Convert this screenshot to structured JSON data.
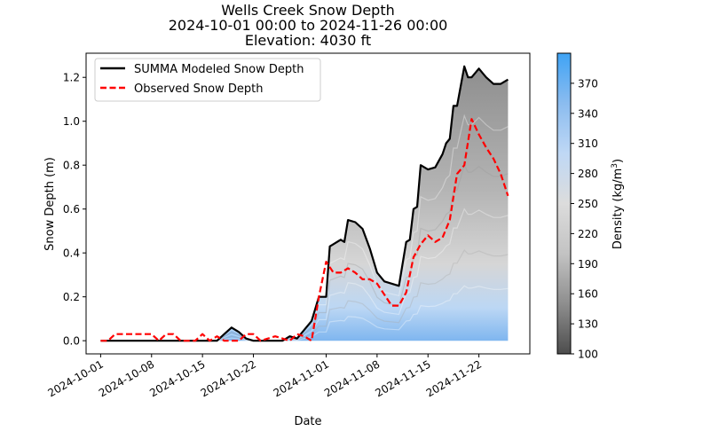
{
  "chart_data": {
    "type": "area",
    "title_lines": [
      "Wells Creek Snow Depth",
      "2024-10-01 00:00 to 2024-11-26 00:00",
      "Elevation: 4030 ft"
    ],
    "xlabel": "Date",
    "ylabel": "Snow Depth (m)",
    "xlim": [
      "2024-09-29",
      "2024-11-29"
    ],
    "ylim": [
      -0.06,
      1.31
    ],
    "x_ticks": [
      "2024-10-01",
      "2024-10-08",
      "2024-10-15",
      "2024-10-22",
      "2024-11-01",
      "2024-11-08",
      "2024-11-15",
      "2024-11-22"
    ],
    "y_ticks": [
      0.0,
      0.2,
      0.4,
      0.6,
      0.8,
      1.0,
      1.2
    ],
    "legend_position": "top-left",
    "colorbar": {
      "label": "Density (kg/m³)",
      "label_base": "Density (kg/m",
      "label_sup": "3",
      "label_end": ")",
      "min": 100,
      "max": 400,
      "ticks": [
        100,
        130,
        160,
        190,
        220,
        250,
        280,
        310,
        340,
        370
      ],
      "colors": [
        "#4d4d4d",
        "#8e8e8e",
        "#c3c3c3",
        "#dcdcdc",
        "#bfd8f5",
        "#8bbcef",
        "#3fa3f5"
      ]
    },
    "series": [
      {
        "name": "SUMMA Modeled Snow Depth",
        "color": "#000000",
        "style": "solid",
        "x": [
          "2024-10-01",
          "2024-10-17",
          "2024-10-18",
          "2024-10-19",
          "2024-10-20",
          "2024-10-21",
          "2024-10-22",
          "2024-10-26",
          "2024-10-27",
          "2024-10-28",
          "2024-10-29",
          "2024-10-30",
          "2024-10-31",
          "2024-11-01",
          "2024-11-01 12:00",
          "2024-11-02",
          "2024-11-03",
          "2024-11-03 12:00",
          "2024-11-04",
          "2024-11-05",
          "2024-11-06",
          "2024-11-07",
          "2024-11-08",
          "2024-11-09",
          "2024-11-10",
          "2024-11-11",
          "2024-11-12",
          "2024-11-12 12:00",
          "2024-11-13",
          "2024-11-13 12:00",
          "2024-11-14",
          "2024-11-15",
          "2024-11-16",
          "2024-11-17",
          "2024-11-17 12:00",
          "2024-11-18",
          "2024-11-18 12:00",
          "2024-11-19",
          "2024-11-20",
          "2024-11-20 12:00",
          "2024-11-21",
          "2024-11-22",
          "2024-11-22 12:00",
          "2024-11-23",
          "2024-11-24",
          "2024-11-25",
          "2024-11-26"
        ],
        "y": [
          0.0,
          0.0,
          0.03,
          0.06,
          0.04,
          0.01,
          0.0,
          0.0,
          0.02,
          0.01,
          0.05,
          0.09,
          0.2,
          0.2,
          0.43,
          0.44,
          0.46,
          0.45,
          0.55,
          0.54,
          0.51,
          0.42,
          0.31,
          0.27,
          0.26,
          0.25,
          0.45,
          0.46,
          0.6,
          0.61,
          0.8,
          0.78,
          0.79,
          0.85,
          0.9,
          0.92,
          1.07,
          1.07,
          1.25,
          1.2,
          1.2,
          1.24,
          1.22,
          1.2,
          1.17,
          1.17,
          1.19
        ]
      },
      {
        "name": "Observed Snow Depth",
        "color": "#ff0000",
        "style": "dashed",
        "x": [
          "2024-10-01",
          "2024-10-02",
          "2024-10-03",
          "2024-10-06",
          "2024-10-08",
          "2024-10-09",
          "2024-10-10",
          "2024-10-11",
          "2024-10-12",
          "2024-10-13",
          "2024-10-14",
          "2024-10-15",
          "2024-10-16",
          "2024-10-17",
          "2024-10-18",
          "2024-10-19",
          "2024-10-20",
          "2024-10-21",
          "2024-10-22",
          "2024-10-23",
          "2024-10-24",
          "2024-10-25",
          "2024-10-26",
          "2024-10-27",
          "2024-10-28",
          "2024-10-29",
          "2024-10-30",
          "2024-10-31",
          "2024-11-01",
          "2024-11-02",
          "2024-11-03",
          "2024-11-04",
          "2024-11-05",
          "2024-11-06",
          "2024-11-07",
          "2024-11-08",
          "2024-11-09",
          "2024-11-10",
          "2024-11-11",
          "2024-11-12",
          "2024-11-13",
          "2024-11-14",
          "2024-11-15",
          "2024-11-16",
          "2024-11-17",
          "2024-11-18",
          "2024-11-19",
          "2024-11-20",
          "2024-11-21",
          "2024-11-22",
          "2024-11-23",
          "2024-11-24",
          "2024-11-25",
          "2024-11-26"
        ],
        "y": [
          0.0,
          0.0,
          0.03,
          0.03,
          0.03,
          0.0,
          0.03,
          0.03,
          0.0,
          0.0,
          0.0,
          0.03,
          0.0,
          0.02,
          0.0,
          0.0,
          0.0,
          0.03,
          0.03,
          0.0,
          0.01,
          0.02,
          0.01,
          0.0,
          0.03,
          0.02,
          0.0,
          0.2,
          0.36,
          0.31,
          0.31,
          0.33,
          0.31,
          0.28,
          0.28,
          0.26,
          0.21,
          0.16,
          0.16,
          0.22,
          0.38,
          0.44,
          0.48,
          0.45,
          0.47,
          0.55,
          0.76,
          0.8,
          1.01,
          0.94,
          0.88,
          0.83,
          0.76,
          0.66
        ]
      }
    ]
  }
}
